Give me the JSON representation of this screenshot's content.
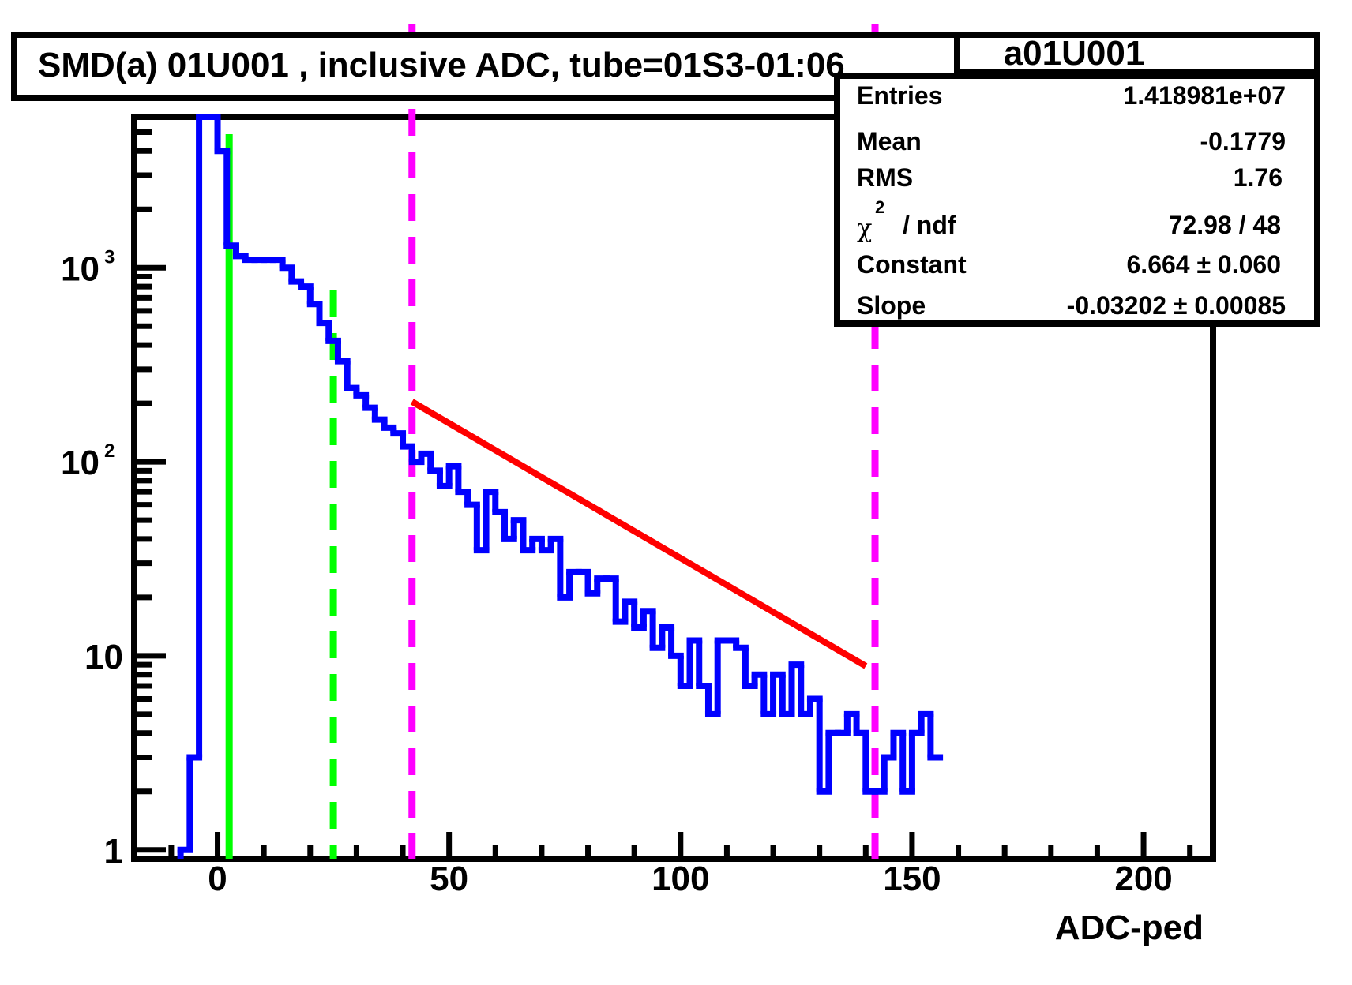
{
  "chart_data": {
    "type": "histogram",
    "title": "SMD(a) 01U001 , inclusive ADC, tube=01S3-01:06",
    "xlabel": "ADC-ped",
    "ylabel": "",
    "xlim": [
      -18,
      215
    ],
    "ylim": [
      0.9,
      6000
    ],
    "y_scale": "log",
    "grid": false,
    "x_ticks": [
      {
        "value": 0,
        "label": "0"
      },
      {
        "value": 50,
        "label": "50"
      },
      {
        "value": 100,
        "label": "100"
      },
      {
        "value": 150,
        "label": "150"
      },
      {
        "value": 200,
        "label": "200"
      }
    ],
    "y_ticks": [
      {
        "value": 1,
        "base": "1",
        "exp": ""
      },
      {
        "value": 10,
        "base": "10",
        "exp": ""
      },
      {
        "value": 100,
        "base": "10",
        "exp": "2"
      },
      {
        "value": 1000,
        "base": "10",
        "exp": "3"
      }
    ],
    "histogram": {
      "name": "a01U001",
      "color": "#0000ff",
      "bin_edges_start": -8,
      "bin_width": 2,
      "counts": [
        1,
        3,
        6000,
        6000,
        4000,
        1300,
        1150,
        1100,
        1100,
        1100,
        1100,
        1000,
        850,
        800,
        650,
        520,
        420,
        330,
        240,
        220,
        190,
        165,
        150,
        140,
        120,
        100,
        110,
        90,
        75,
        95,
        70,
        60,
        35,
        70,
        55,
        40,
        50,
        35,
        40,
        35,
        40,
        20,
        27,
        27,
        21,
        25,
        25,
        15,
        19,
        14,
        17,
        11,
        14,
        10,
        7,
        12,
        7,
        5,
        12,
        12,
        11,
        7,
        8,
        5,
        8,
        5,
        9,
        5,
        6,
        2,
        4,
        4,
        5,
        4,
        2,
        2,
        3,
        4,
        2,
        4,
        5,
        3
      ]
    },
    "fit": {
      "color": "#ff0000",
      "x_start": 42,
      "x_end": 140,
      "constant": 6.664,
      "slope": -0.03202
    },
    "markers": [
      {
        "x": 2.5,
        "color": "#00ff00",
        "style": "solid"
      },
      {
        "x": 25,
        "color": "#00ff00",
        "style": "dashed"
      },
      {
        "x": 42,
        "color": "#ff00ff",
        "style": "dashed"
      },
      {
        "x": 142,
        "color": "#ff00ff",
        "style": "dashed"
      }
    ]
  },
  "stats_box": {
    "name": "a01U001",
    "rows": [
      {
        "label": "Entries",
        "value": "1.418981e+07"
      },
      {
        "label": "Mean",
        "value": "-0.1779"
      },
      {
        "label": "RMS",
        "value": "1.76"
      },
      {
        "label": "chi2",
        "value": "72.98 / 48"
      },
      {
        "label": "Constant",
        "value": "6.664 ± 0.060"
      },
      {
        "label": "Slope",
        "value": "-0.03202 ± 0.00085"
      }
    ],
    "chi_symbol": "χ",
    "chi_exp": "2",
    "chi_suffix": "/ ndf"
  }
}
